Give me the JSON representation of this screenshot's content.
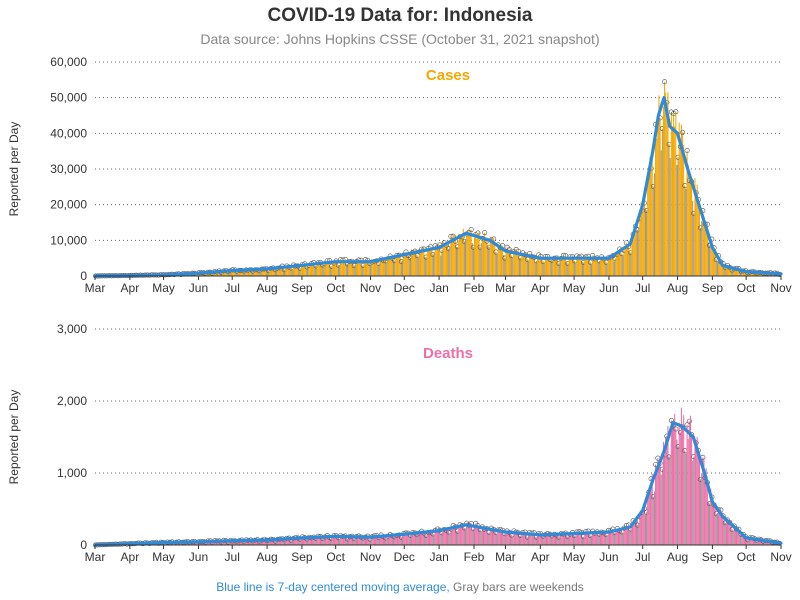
{
  "title": "COVID-19 Data for: Indonesia",
  "subtitle": "Data source: Johns Hopkins CSSE (October 31, 2021 snapshot)",
  "footnote": {
    "blue_part": "Blue line is 7-day centered moving average,",
    "gray_part": " Gray bars are weekends"
  },
  "colors": {
    "cases_bar": "#f5a800",
    "deaths_bar": "#ee6fa8",
    "moving_average": "#2f8ad8",
    "grid": "#666666"
  },
  "chart_data": [
    {
      "type": "bar",
      "title": "Cases",
      "ylabel": "Reported per Day",
      "ylim": [
        0,
        60000
      ],
      "yticks": [
        0,
        10000,
        20000,
        30000,
        40000,
        50000,
        60000
      ],
      "ytick_labels": [
        "0",
        "10,000",
        "20,000",
        "30,000",
        "40,000",
        "50,000",
        "60,000"
      ],
      "xlim": [
        "2020-03-01",
        "2021-11-01"
      ],
      "xtick_labels": [
        "Mar",
        "Apr",
        "May",
        "Jun",
        "Jul",
        "Aug",
        "Sep",
        "Oct",
        "Nov",
        "Dec",
        "Jan",
        "Feb",
        "Mar",
        "Apr",
        "May",
        "Jun",
        "Jul",
        "Aug",
        "Sep",
        "Oct",
        "Nov"
      ],
      "grid": "horizontal dotted",
      "approx_series": {
        "name": "7-day centered moving average",
        "x": [
          "2020-03-01",
          "2020-04-01",
          "2020-05-01",
          "2020-06-01",
          "2020-07-01",
          "2020-08-01",
          "2020-09-01",
          "2020-10-01",
          "2020-11-01",
          "2020-12-01",
          "2021-01-01",
          "2021-01-25",
          "2021-02-15",
          "2021-03-01",
          "2021-04-01",
          "2021-05-01",
          "2021-06-01",
          "2021-06-20",
          "2021-07-01",
          "2021-07-10",
          "2021-07-15",
          "2021-07-20",
          "2021-07-25",
          "2021-08-01",
          "2021-08-10",
          "2021-08-20",
          "2021-09-01",
          "2021-09-10",
          "2021-10-01",
          "2021-11-01"
        ],
        "y": [
          0,
          150,
          350,
          800,
          1500,
          2000,
          3000,
          4000,
          4000,
          6000,
          8000,
          12000,
          10000,
          7000,
          5000,
          5000,
          5000,
          9000,
          20000,
          35000,
          45000,
          50000,
          42000,
          40000,
          30000,
          20000,
          8000,
          3000,
          1200,
          600
        ]
      }
    },
    {
      "type": "bar",
      "title": "Deaths",
      "ylabel": "Reported per Day",
      "ylim": [
        0,
        3000
      ],
      "yticks": [
        0,
        1000,
        2000,
        3000
      ],
      "ytick_labels": [
        "0",
        "1,000",
        "2,000",
        "3,000"
      ],
      "xlim": [
        "2020-03-01",
        "2021-11-01"
      ],
      "xtick_labels": [
        "Mar",
        "Apr",
        "May",
        "Jun",
        "Jul",
        "Aug",
        "Sep",
        "Oct",
        "Nov",
        "Dec",
        "Jan",
        "Feb",
        "Mar",
        "Apr",
        "May",
        "Jun",
        "Jul",
        "Aug",
        "Sep",
        "Oct",
        "Nov"
      ],
      "grid": "horizontal dotted",
      "approx_series": {
        "name": "7-day centered moving average",
        "x": [
          "2020-03-01",
          "2020-04-01",
          "2020-05-01",
          "2020-06-01",
          "2020-07-01",
          "2020-08-01",
          "2020-09-01",
          "2020-10-01",
          "2020-11-01",
          "2020-12-01",
          "2021-01-01",
          "2021-01-25",
          "2021-02-15",
          "2021-03-01",
          "2021-04-01",
          "2021-05-01",
          "2021-06-01",
          "2021-06-20",
          "2021-07-01",
          "2021-07-10",
          "2021-07-20",
          "2021-07-28",
          "2021-08-05",
          "2021-08-15",
          "2021-08-25",
          "2021-09-01",
          "2021-09-10",
          "2021-10-01",
          "2021-11-01"
        ],
        "y": [
          0,
          20,
          35,
          45,
          60,
          70,
          100,
          120,
          110,
          150,
          200,
          280,
          220,
          180,
          140,
          160,
          180,
          250,
          480,
          900,
          1300,
          1700,
          1650,
          1500,
          1000,
          600,
          400,
          100,
          25
        ]
      }
    }
  ]
}
